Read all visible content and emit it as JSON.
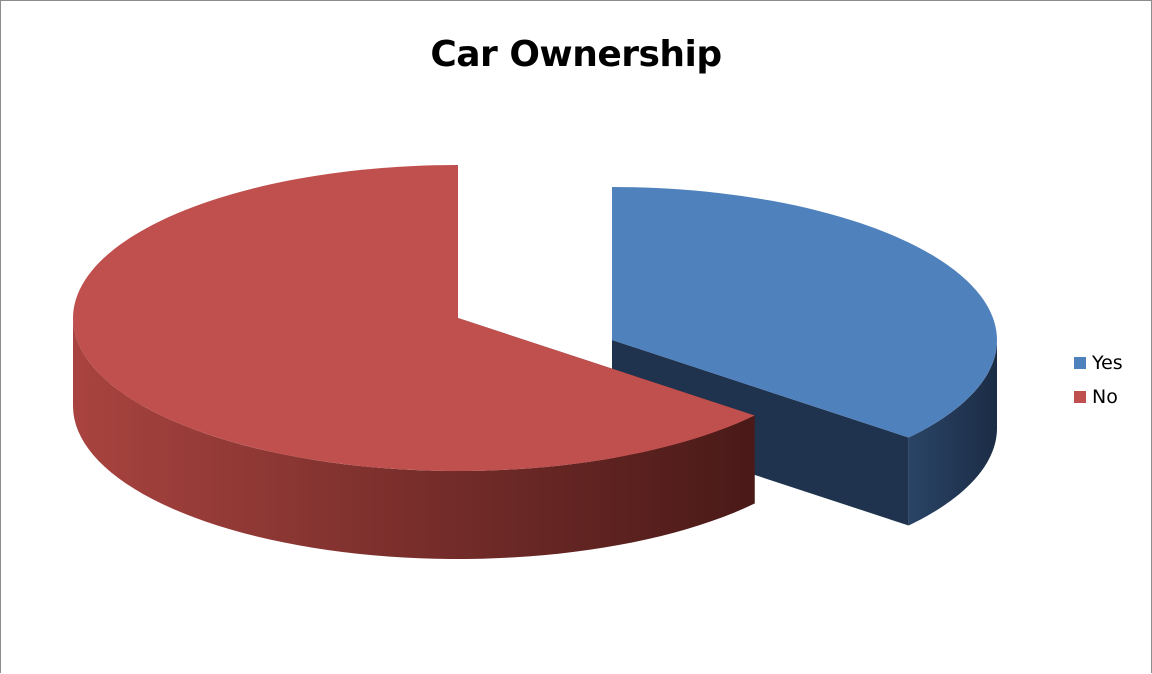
{
  "chart_data": {
    "type": "pie",
    "style": "3d-exploded",
    "title": "Car Ownership",
    "categories": [
      "Yes",
      "No"
    ],
    "values": [
      36,
      64
    ],
    "colors": [
      "#4f81bd",
      "#c0504d"
    ],
    "side_colors": [
      "#1f334f",
      "#5a1f1d"
    ],
    "legend_position": "right"
  }
}
